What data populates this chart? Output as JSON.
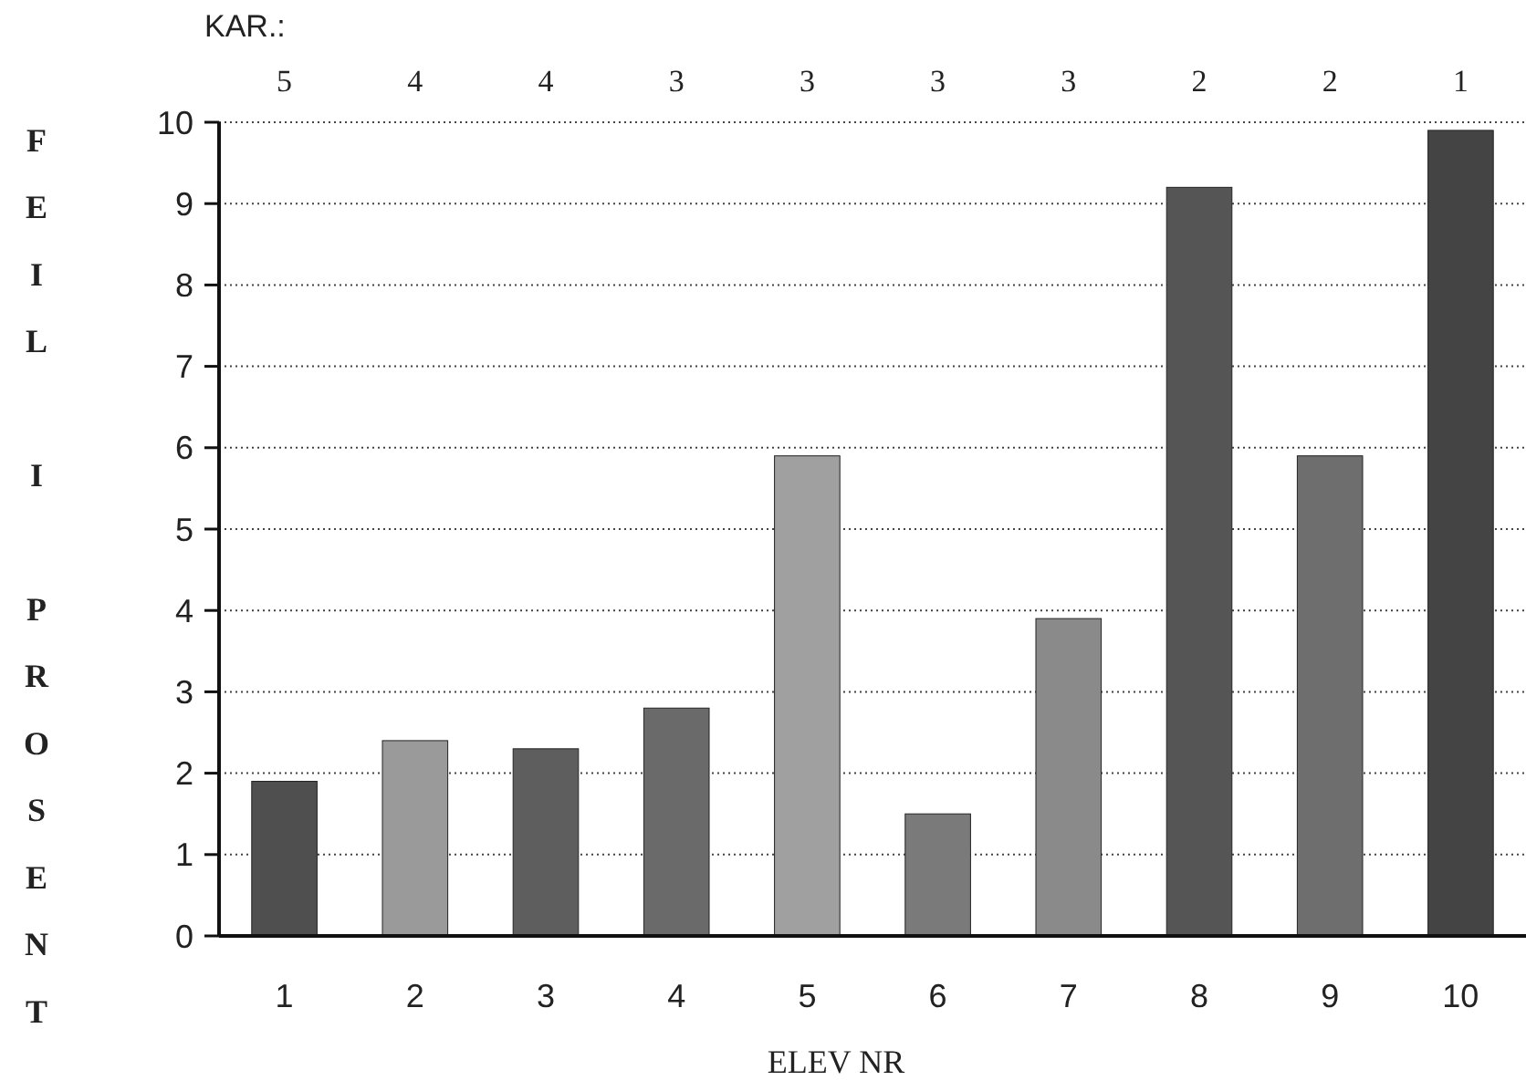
{
  "chart_data": {
    "type": "bar",
    "xlabel": "ELEV NR",
    "ylabel": "FEIL I PROSENT",
    "categories": [
      "1",
      "2",
      "3",
      "4",
      "5",
      "6",
      "7",
      "8",
      "9",
      "10"
    ],
    "values": [
      1.9,
      2.4,
      2.3,
      2.8,
      5.9,
      1.5,
      3.9,
      9.2,
      5.9,
      9.9
    ],
    "colors": [
      "#4f4f4f",
      "#9a9a9a",
      "#5e5e5e",
      "#6a6a6a",
      "#a0a0a0",
      "#7a7a7a",
      "#8a8a8a",
      "#555555",
      "#6e6e6e",
      "#444444"
    ],
    "ylim": [
      0,
      10
    ],
    "yticks": [
      0,
      1,
      2,
      3,
      4,
      5,
      6,
      7,
      8,
      9,
      10
    ],
    "grid": "y",
    "annotations": [
      "KAR.:",
      "5",
      "4",
      "4",
      "3",
      "3",
      "3",
      "3",
      "2",
      "2",
      "1"
    ]
  }
}
